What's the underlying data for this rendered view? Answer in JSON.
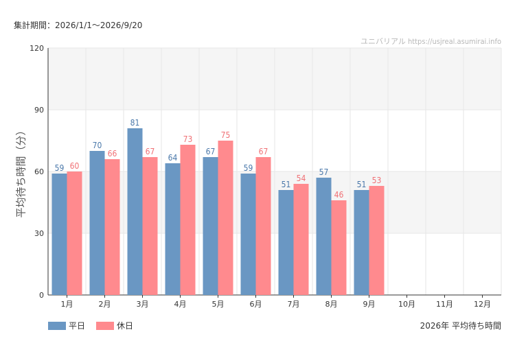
{
  "header": {
    "period_text": "集計期間：2026/1/1～2026/9/20",
    "credit_text": "ユニバリアル  https://usjreal.asumirai.info"
  },
  "colors": {
    "weekday": "#6a97c3",
    "holiday": "#ff8a8e",
    "weekday_label": "#4a78aa",
    "holiday_label": "#f07075",
    "band": "#f5f5f5",
    "grid": "#e6e6e6"
  },
  "chart_data": {
    "type": "bar",
    "title": "",
    "ylabel": "平均待ち時間（分）",
    "xlabel": "",
    "ylim": [
      0,
      120
    ],
    "yticks": [
      0,
      30,
      60,
      90,
      120
    ],
    "categories": [
      "1月",
      "2月",
      "3月",
      "4月",
      "5月",
      "6月",
      "7月",
      "8月",
      "9月",
      "10月",
      "11月",
      "12月"
    ],
    "series": [
      {
        "name": "平日",
        "values": [
          59,
          70,
          81,
          64,
          67,
          59,
          51,
          57,
          51,
          null,
          null,
          null
        ]
      },
      {
        "name": "休日",
        "values": [
          60,
          66,
          67,
          73,
          75,
          67,
          54,
          46,
          53,
          null,
          null,
          null
        ]
      }
    ],
    "legend_position": "bottom-left",
    "caption": "2026年 平均待ち時間"
  }
}
